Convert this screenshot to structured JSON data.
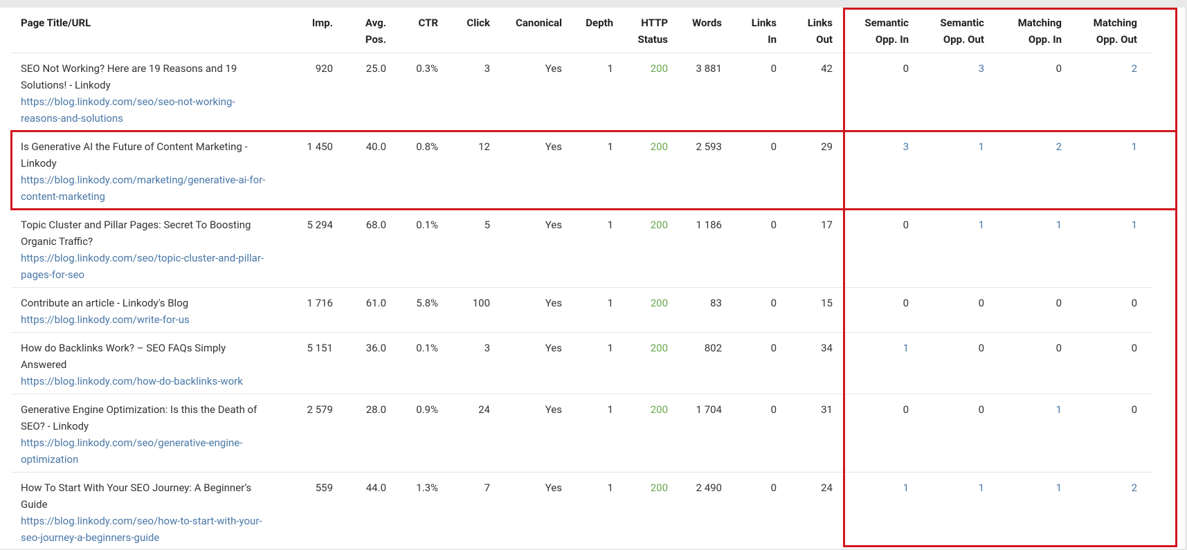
{
  "table": {
    "columns": [
      [
        "Page Title/URL"
      ],
      [
        "Imp."
      ],
      [
        "Avg.",
        "Pos."
      ],
      [
        "CTR"
      ],
      [
        "Click"
      ],
      [
        "Canonical"
      ],
      [
        "Depth"
      ],
      [
        "HTTP",
        "Status"
      ],
      [
        "Words"
      ],
      [
        "Links",
        "In"
      ],
      [
        "Links",
        "Out"
      ],
      [
        "Semantic",
        "Opp. In"
      ],
      [
        "Semantic",
        "Opp. Out"
      ],
      [
        "Matching",
        "Opp. In"
      ],
      [
        "Matching",
        "Opp. Out"
      ]
    ],
    "rows": [
      {
        "title": "SEO Not Working? Here are 19 Reasons and 19 Solutions! - Linkody",
        "url": "https://blog.linkody.com/seo/seo-not-working-reasons-and-solutions",
        "cells": [
          "920",
          "25.0",
          "0.3%",
          "3",
          "Yes",
          "1",
          "200",
          "3 881",
          "0",
          "42",
          "0",
          "3",
          "0",
          "2"
        ]
      },
      {
        "title": "Is Generative AI the Future of Content Marketing - Linkody",
        "url": "https://blog.linkody.com/marketing/generative-ai-for-content-marketing",
        "cells": [
          "1 450",
          "40.0",
          "0.8%",
          "12",
          "Yes",
          "1",
          "200",
          "2 593",
          "0",
          "29",
          "3",
          "1",
          "2",
          "1"
        ]
      },
      {
        "title": "Topic Cluster and Pillar Pages: Secret To Boosting Organic Traffic?",
        "url": "https://blog.linkody.com/seo/topic-cluster-and-pillar-pages-for-seo",
        "cells": [
          "5 294",
          "68.0",
          "0.1%",
          "5",
          "Yes",
          "1",
          "200",
          "1 186",
          "0",
          "17",
          "0",
          "1",
          "1",
          "1"
        ]
      },
      {
        "title": "Contribute an article - Linkody's Blog",
        "url": "https://blog.linkody.com/write-for-us",
        "cells": [
          "1 716",
          "61.0",
          "5.8%",
          "100",
          "Yes",
          "1",
          "200",
          "83",
          "0",
          "15",
          "0",
          "0",
          "0",
          "0"
        ]
      },
      {
        "title": "How do Backlinks Work? – SEO FAQs Simply Answered",
        "url": "https://blog.linkody.com/how-do-backlinks-work",
        "cells": [
          "5 151",
          "36.0",
          "0.1%",
          "3",
          "Yes",
          "1",
          "200",
          "802",
          "0",
          "34",
          "1",
          "0",
          "0",
          "0"
        ]
      },
      {
        "title": "Generative Engine Optimization: Is this the Death of SEO? - Linkody",
        "url": "https://blog.linkody.com/seo/generative-engine-optimization",
        "cells": [
          "2 579",
          "28.0",
          "0.9%",
          "24",
          "Yes",
          "1",
          "200",
          "1 704",
          "0",
          "31",
          "0",
          "0",
          "1",
          "0"
        ]
      },
      {
        "title": "How To Start With Your SEO Journey: A Beginner’s Guide",
        "url": "https://blog.linkody.com/seo/how-to-start-with-your-seo-journey-a-beginners-guide",
        "cells": [
          "559",
          "44.0",
          "1.3%",
          "7",
          "Yes",
          "1",
          "200",
          "2 490",
          "0",
          "24",
          "1",
          "1",
          "1",
          "2"
        ]
      }
    ]
  }
}
